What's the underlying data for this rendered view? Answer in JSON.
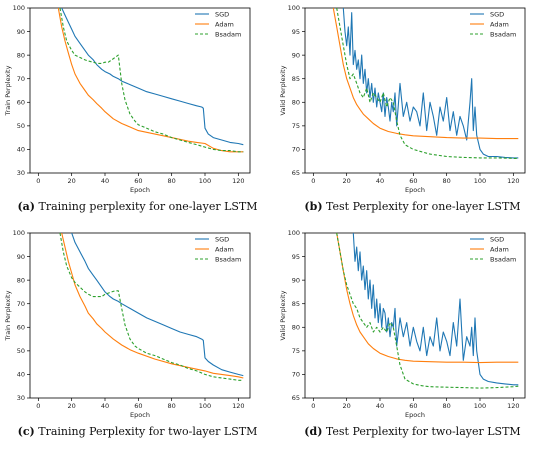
{
  "colors": {
    "sgd": "#1f77b4",
    "adam": "#ff7f0e",
    "bsadam": "#2ca02c"
  },
  "chart_data": [
    {
      "type": "line",
      "caption_tag": "(a)",
      "caption_text": "Training perplexity for one-layer LSTM",
      "xlabel": "Epoch",
      "ylabel": "Train Perplexity",
      "xlim": [
        -5,
        127
      ],
      "ylim": [
        30,
        100
      ],
      "xticks": [
        0,
        20,
        40,
        60,
        80,
        100,
        120
      ],
      "yticks": [
        30,
        40,
        50,
        60,
        70,
        80,
        90,
        100
      ],
      "legend": "top-right",
      "series": [
        {
          "name": "SGD",
          "style": "solid",
          "x": [
            14,
            16,
            18,
            20,
            22,
            25,
            28,
            30,
            33,
            35,
            38,
            40,
            43,
            45,
            48,
            50,
            55,
            60,
            65,
            70,
            75,
            80,
            85,
            90,
            95,
            98,
            99,
            100,
            102,
            105,
            110,
            115,
            120,
            123
          ],
          "y": [
            100,
            97,
            94,
            91,
            88,
            85,
            82,
            80,
            78,
            76,
            74,
            73,
            72,
            71,
            70,
            69,
            67.5,
            66,
            64.5,
            63.5,
            62.5,
            61.5,
            60.5,
            59.5,
            58.5,
            58,
            57.5,
            49,
            46.5,
            45,
            44,
            43,
            42.5,
            42
          ]
        },
        {
          "name": "Adam",
          "style": "solid",
          "x": [
            12,
            14,
            16,
            18,
            20,
            22,
            25,
            28,
            30,
            33,
            35,
            38,
            40,
            45,
            50,
            55,
            60,
            70,
            80,
            90,
            95,
            100,
            105,
            110,
            115,
            120,
            123
          ],
          "y": [
            100,
            92,
            86,
            81,
            76,
            72,
            68,
            65,
            63,
            61,
            59.5,
            57.5,
            56,
            53,
            51,
            49.5,
            48,
            46.5,
            45,
            43.5,
            43,
            42.5,
            40.5,
            39.5,
            39,
            39,
            39
          ]
        },
        {
          "name": "Bsadam",
          "style": "dashed",
          "x": [
            13,
            15,
            17,
            20,
            22,
            25,
            28,
            30,
            33,
            35,
            38,
            40,
            42,
            44,
            46,
            48,
            50,
            52,
            55,
            58,
            60,
            65,
            70,
            75,
            80,
            85,
            90,
            95,
            100,
            105,
            110,
            115,
            120,
            123
          ],
          "y": [
            100,
            92,
            86,
            82,
            80,
            79,
            78,
            77.5,
            77,
            76.5,
            76.5,
            77,
            77,
            78,
            79,
            80,
            68,
            61,
            55,
            52,
            50.5,
            49,
            47.5,
            46.5,
            45,
            44,
            43,
            42,
            41,
            40,
            39.5,
            39.5,
            39,
            39
          ]
        }
      ]
    },
    {
      "type": "line",
      "caption_tag": "(b)",
      "caption_text": "Test Perplexity for one-layer LSTM",
      "xlabel": "Epoch",
      "ylabel": "Valid Perplexity",
      "xlim": [
        -5,
        127
      ],
      "ylim": [
        65,
        100
      ],
      "xticks": [
        0,
        20,
        40,
        60,
        80,
        100,
        120
      ],
      "yticks": [
        65,
        70,
        75,
        80,
        85,
        90,
        95,
        100
      ],
      "legend": "top-right",
      "series": [
        {
          "name": "SGD",
          "style": "solid",
          "x": [
            18,
            19,
            20,
            21,
            22,
            23,
            24,
            25,
            26,
            27,
            28,
            29,
            30,
            31,
            32,
            33,
            34,
            35,
            36,
            37,
            38,
            39,
            40,
            41,
            42,
            43,
            44,
            45,
            46,
            47,
            48,
            49,
            50,
            52,
            54,
            56,
            58,
            60,
            62,
            64,
            66,
            68,
            70,
            72,
            74,
            76,
            78,
            80,
            82,
            84,
            86,
            88,
            90,
            92,
            94,
            95,
            96,
            97,
            98,
            100,
            102,
            105,
            110,
            115,
            120,
            123
          ],
          "y": [
            100,
            95,
            92,
            96,
            90,
            99,
            88,
            91,
            87,
            89,
            85,
            90,
            84,
            87,
            82,
            85,
            81,
            84,
            80,
            83,
            79,
            82,
            80,
            78,
            82,
            77,
            81,
            79,
            76,
            80,
            78,
            82,
            75,
            84,
            77,
            80,
            76,
            79,
            78,
            75,
            82,
            74,
            80,
            77,
            73,
            79,
            76,
            81,
            74,
            78,
            73,
            77,
            75,
            72,
            80,
            85,
            74,
            79,
            73,
            70,
            69,
            68.5,
            68.5,
            68.3,
            68.2,
            68.2
          ]
        },
        {
          "name": "Adam",
          "style": "solid",
          "x": [
            12,
            14,
            16,
            18,
            20,
            22,
            24,
            26,
            28,
            30,
            33,
            36,
            40,
            45,
            50,
            55,
            60,
            70,
            80,
            90,
            100,
            110,
            120,
            123
          ],
          "y": [
            100,
            96,
            92,
            88,
            85,
            83,
            81,
            79.5,
            78.5,
            77.5,
            76.5,
            75.5,
            74.5,
            73.8,
            73.4,
            73.1,
            72.9,
            72.7,
            72.5,
            72.4,
            72.4,
            72.3,
            72.3,
            72.3
          ]
        },
        {
          "name": "Bsadam",
          "style": "dashed",
          "x": [
            14,
            16,
            18,
            20,
            22,
            24,
            26,
            28,
            30,
            32,
            34,
            36,
            38,
            40,
            42,
            44,
            46,
            48,
            50,
            52,
            55,
            60,
            65,
            70,
            80,
            90,
            100,
            110,
            120,
            123
          ],
          "y": [
            100,
            96,
            92,
            88,
            85,
            86,
            84,
            82,
            81,
            83,
            80,
            82,
            81,
            80,
            82,
            79,
            81,
            80,
            76,
            73,
            71,
            70,
            69.5,
            69,
            68.5,
            68.3,
            68.2,
            68.2,
            68.1,
            68.1
          ]
        }
      ]
    },
    {
      "type": "line",
      "caption_tag": "(c)",
      "caption_text": "Training Perplexity for two-layer LSTM",
      "xlabel": "Epoch",
      "ylabel": "Train Perplexity",
      "xlim": [
        -5,
        127
      ],
      "ylim": [
        30,
        100
      ],
      "xticks": [
        0,
        20,
        40,
        60,
        80,
        100,
        120
      ],
      "yticks": [
        30,
        40,
        50,
        60,
        70,
        80,
        90,
        100
      ],
      "legend": "top-right",
      "series": [
        {
          "name": "SGD",
          "style": "solid",
          "x": [
            20,
            22,
            25,
            28,
            30,
            33,
            35,
            38,
            40,
            43,
            45,
            48,
            50,
            55,
            60,
            65,
            70,
            75,
            80,
            85,
            90,
            95,
            98,
            99,
            100,
            102,
            105,
            110,
            115,
            120,
            123
          ],
          "y": [
            100,
            96,
            92,
            88,
            85,
            82,
            80,
            77,
            75,
            73,
            72,
            71,
            70,
            68,
            66,
            64,
            62.5,
            61,
            59.5,
            58,
            57,
            56,
            55,
            54.5,
            47,
            45.5,
            44,
            42,
            41,
            40,
            39.5
          ]
        },
        {
          "name": "Adam",
          "style": "solid",
          "x": [
            14,
            16,
            18,
            20,
            22,
            25,
            28,
            30,
            33,
            35,
            38,
            40,
            45,
            50,
            55,
            60,
            70,
            80,
            90,
            100,
            105,
            110,
            115,
            120,
            123
          ],
          "y": [
            100,
            94,
            88,
            83,
            78,
            73,
            69,
            66,
            63.5,
            61.5,
            59.5,
            58,
            55,
            52.5,
            50.5,
            49,
            46.5,
            44.5,
            43,
            41.5,
            40.5,
            40,
            39.5,
            39,
            38.5
          ]
        },
        {
          "name": "Bsadam",
          "style": "dashed",
          "x": [
            13,
            15,
            17,
            20,
            22,
            25,
            28,
            30,
            33,
            35,
            38,
            40,
            42,
            44,
            46,
            48,
            50,
            52,
            55,
            58,
            60,
            65,
            70,
            75,
            80,
            85,
            90,
            95,
            100,
            105,
            110,
            115,
            120,
            123
          ],
          "y": [
            100,
            92,
            86,
            81,
            79,
            77,
            75,
            74,
            73,
            73,
            73,
            74,
            74.5,
            75,
            75.5,
            75.5,
            68,
            61,
            55,
            52,
            51,
            49,
            48,
            46.5,
            45,
            44,
            42.5,
            41.5,
            40,
            39,
            38.5,
            38,
            37.5,
            37.5
          ]
        }
      ]
    },
    {
      "type": "line",
      "caption_tag": "(d)",
      "caption_text": "Test Perplexity for two-layer LSTM",
      "xlabel": "Epoch",
      "ylabel": "Valid Perplexity",
      "xlim": [
        -5,
        127
      ],
      "ylim": [
        65,
        100
      ],
      "xticks": [
        0,
        20,
        40,
        60,
        80,
        100,
        120
      ],
      "yticks": [
        65,
        70,
        75,
        80,
        85,
        90,
        95,
        100
      ],
      "legend": "top-right",
      "series": [
        {
          "name": "SGD",
          "style": "solid",
          "x": [
            24,
            25,
            26,
            27,
            28,
            29,
            30,
            31,
            32,
            33,
            34,
            35,
            36,
            37,
            38,
            39,
            40,
            41,
            42,
            43,
            44,
            45,
            46,
            47,
            48,
            49,
            50,
            52,
            54,
            56,
            58,
            60,
            62,
            64,
            66,
            68,
            70,
            72,
            74,
            76,
            78,
            80,
            82,
            84,
            86,
            88,
            90,
            92,
            94,
            95,
            96,
            97,
            98,
            100,
            102,
            105,
            110,
            115,
            120,
            123
          ],
          "y": [
            100,
            94,
            97,
            92,
            96,
            90,
            93,
            88,
            92,
            86,
            90,
            84,
            89,
            82,
            86,
            81,
            85,
            80,
            84,
            83,
            79,
            82,
            78,
            81,
            80,
            84,
            76,
            82,
            78,
            81,
            76,
            80,
            77,
            75,
            80,
            74,
            78,
            76,
            82,
            75,
            79,
            77,
            74,
            81,
            76,
            86,
            73,
            78,
            76,
            80,
            74,
            82,
            75,
            70,
            69,
            68.5,
            68.2,
            68,
            67.8,
            67.8
          ]
        },
        {
          "name": "Adam",
          "style": "solid",
          "x": [
            14,
            16,
            18,
            20,
            22,
            24,
            26,
            28,
            30,
            33,
            36,
            40,
            45,
            50,
            55,
            60,
            70,
            80,
            90,
            100,
            110,
            120,
            123
          ],
          "y": [
            100,
            96,
            92,
            88,
            85,
            82.5,
            80.5,
            79,
            78,
            76.5,
            75.5,
            74.5,
            73.8,
            73.3,
            73,
            72.8,
            72.7,
            72.6,
            72.6,
            72.5,
            72.6,
            72.6,
            72.6
          ]
        },
        {
          "name": "Bsadam",
          "style": "dashed",
          "x": [
            14,
            16,
            18,
            20,
            22,
            24,
            26,
            28,
            30,
            32,
            34,
            36,
            38,
            40,
            42,
            44,
            46,
            48,
            50,
            52,
            55,
            60,
            65,
            70,
            80,
            90,
            100,
            110,
            120,
            123
          ],
          "y": [
            100,
            96,
            92,
            89,
            87,
            85,
            84,
            82,
            81,
            80,
            81,
            79,
            80,
            79,
            80,
            79,
            81,
            80,
            76,
            72,
            69,
            68,
            67.6,
            67.4,
            67.3,
            67.2,
            67.1,
            67.2,
            67.4,
            67.5
          ]
        }
      ]
    }
  ]
}
